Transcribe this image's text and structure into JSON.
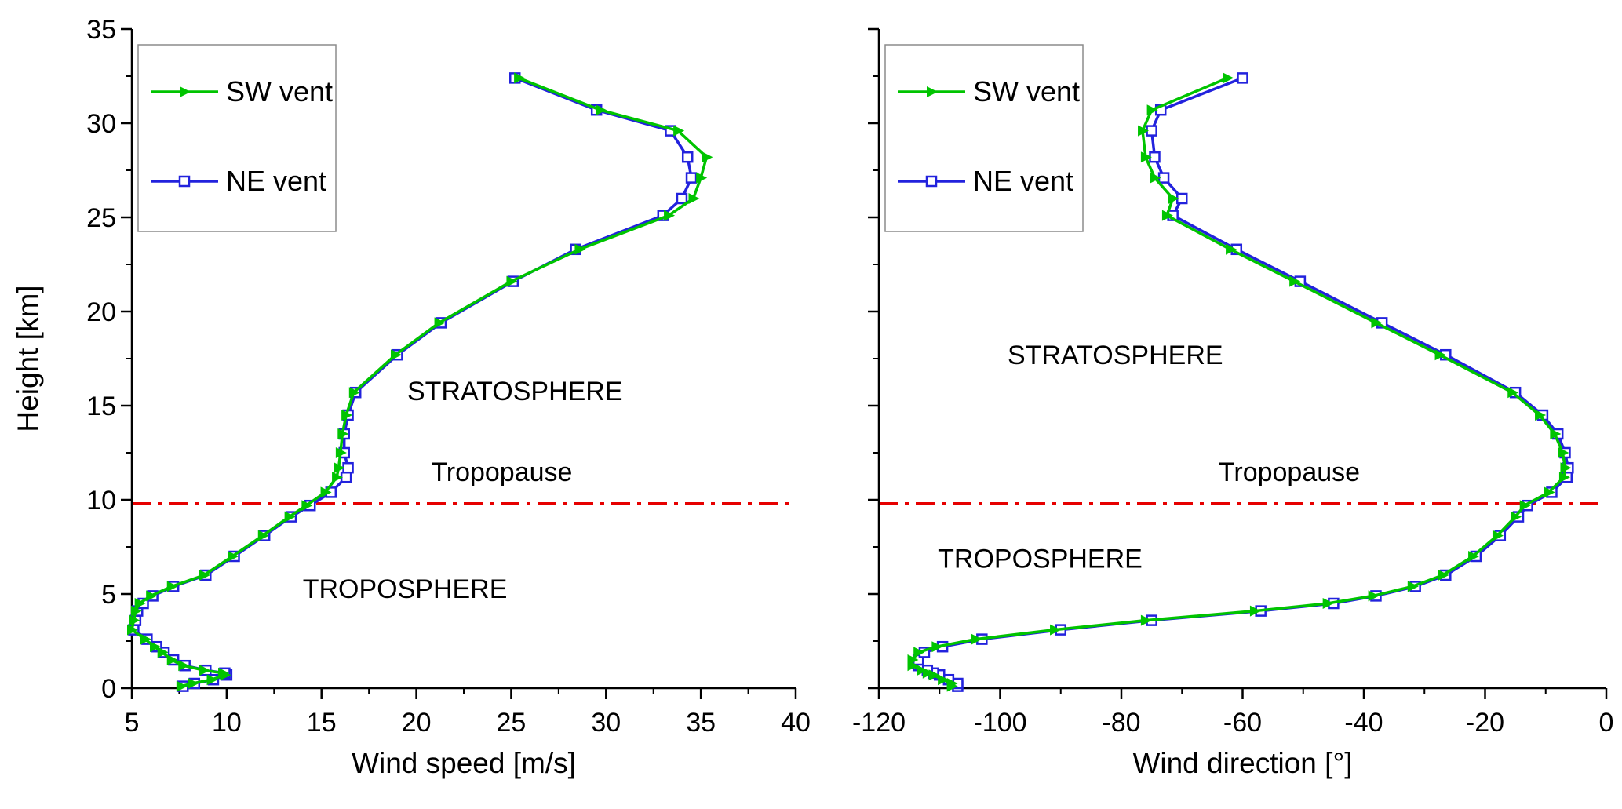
{
  "figure": {
    "background": "#ffffff",
    "legend_border_color": "#8c8c8c"
  },
  "chart_data": [
    {
      "type": "line",
      "title": "",
      "xlabel": "Wind speed [m/s]",
      "ylabel": "Height [km]",
      "xlim": [
        5,
        40
      ],
      "ylim": [
        0,
        35
      ],
      "xticks": [
        5,
        10,
        15,
        20,
        25,
        30,
        35,
        40
      ],
      "yticks": [
        0,
        5,
        10,
        15,
        20,
        25,
        30,
        35
      ],
      "show_y_tick_labels": true,
      "grid": false,
      "legend_position": "top-left",
      "reference_line": {
        "y": 9.8,
        "color": "#e60000",
        "style": "dash-dot"
      },
      "annotations": [
        {
          "text": "STRATOSPHERE",
          "x": 25.2,
          "y": 15.3
        },
        {
          "text": "Tropopause",
          "x": 24.5,
          "y": 11.0
        },
        {
          "text": "TROPOSPHERE",
          "x": 19.4,
          "y": 4.8
        }
      ],
      "heights": [
        0.1,
        0.25,
        0.45,
        0.7,
        0.8,
        0.95,
        1.2,
        1.5,
        1.9,
        2.2,
        2.6,
        3.1,
        3.6,
        4.1,
        4.5,
        4.9,
        5.4,
        6.0,
        7.0,
        8.1,
        9.1,
        9.7,
        10.4,
        11.2,
        11.7,
        12.5,
        13.5,
        14.5,
        15.7,
        17.7,
        19.4,
        21.6,
        23.3,
        25.1,
        26.0,
        27.1,
        28.2,
        29.6,
        30.7,
        32.4
      ],
      "series": [
        {
          "name": "SW vent",
          "color": "#00c400",
          "marker": "triangle-right",
          "values": [
            7.6,
            8.2,
            9.2,
            9.9,
            9.8,
            8.8,
            7.7,
            7.1,
            6.6,
            6.2,
            5.7,
            5.0,
            5.1,
            5.2,
            5.4,
            6.0,
            7.1,
            8.8,
            10.3,
            11.9,
            13.3,
            14.2,
            15.2,
            15.8,
            15.9,
            16.0,
            16.1,
            16.3,
            16.7,
            18.9,
            21.2,
            25.0,
            28.6,
            33.3,
            34.6,
            35.0,
            35.3,
            33.8,
            29.7,
            25.4
          ]
        },
        {
          "name": "NE vent",
          "color": "#2222dd",
          "marker": "square-open",
          "values": [
            7.7,
            8.3,
            9.3,
            10.0,
            9.9,
            8.9,
            7.8,
            7.2,
            6.7,
            6.3,
            5.8,
            5.1,
            5.2,
            5.3,
            5.6,
            6.1,
            7.2,
            8.9,
            10.4,
            12.0,
            13.4,
            14.4,
            15.5,
            16.3,
            16.4,
            16.2,
            16.2,
            16.4,
            16.8,
            19.0,
            21.3,
            25.1,
            28.4,
            33.0,
            34.0,
            34.5,
            34.3,
            33.4,
            29.5,
            25.2
          ]
        }
      ]
    },
    {
      "type": "line",
      "title": "",
      "xlabel": "Wind direction [°]",
      "ylabel": "",
      "xlim": [
        -120,
        0
      ],
      "ylim": [
        0,
        35
      ],
      "xticks": [
        -120,
        -100,
        -80,
        -60,
        -40,
        -20,
        0
      ],
      "yticks": [
        0,
        5,
        10,
        15,
        20,
        25,
        30,
        35
      ],
      "show_y_tick_labels": false,
      "grid": false,
      "legend_position": "top-left",
      "reference_line": {
        "y": 9.8,
        "color": "#e60000",
        "style": "dash-dot"
      },
      "annotations": [
        {
          "text": "STRATOSPHERE",
          "x": -81,
          "y": 17.2
        },
        {
          "text": "Tropopause",
          "x": -52.3,
          "y": 11.0
        },
        {
          "text": "TROPOSPHERE",
          "x": -93.4,
          "y": 6.4
        }
      ],
      "heights": [
        0.1,
        0.25,
        0.45,
        0.7,
        0.8,
        0.95,
        1.2,
        1.5,
        1.9,
        2.2,
        2.6,
        3.1,
        3.6,
        4.1,
        4.5,
        4.9,
        5.4,
        6.0,
        7.0,
        8.1,
        9.1,
        9.7,
        10.4,
        11.2,
        11.7,
        12.5,
        13.5,
        14.5,
        15.7,
        17.7,
        19.4,
        21.6,
        23.3,
        25.1,
        26.0,
        27.1,
        28.2,
        29.6,
        30.7,
        32.4
      ],
      "series": [
        {
          "name": "SW vent",
          "color": "#00c400",
          "marker": "triangle-right",
          "values": [
            -108,
            -108,
            -109.5,
            -111,
            -112,
            -113,
            -114.5,
            -114.5,
            -113.5,
            -110.5,
            -104,
            -91,
            -76,
            -58,
            -46,
            -38.5,
            -32,
            -27,
            -22,
            -18,
            -15,
            -13.5,
            -9.5,
            -7,
            -6.8,
            -7.2,
            -8.5,
            -11,
            -15.5,
            -27.5,
            -38,
            -51.5,
            -62,
            -72.5,
            -71.5,
            -74.5,
            -76,
            -76.5,
            -75,
            -62.5
          ]
        },
        {
          "name": "NE vent",
          "color": "#2222dd",
          "marker": "square-open",
          "values": [
            -107,
            -107,
            -108.5,
            -110,
            -111,
            -112,
            -113.5,
            -113.5,
            -112.5,
            -109.5,
            -103,
            -90,
            -75,
            -57,
            -45,
            -38,
            -31.5,
            -26.5,
            -21.5,
            -17.5,
            -14.5,
            -13,
            -9,
            -6.5,
            -6.3,
            -6.8,
            -8,
            -10.5,
            -15,
            -26.5,
            -37,
            -50.5,
            -61,
            -71.5,
            -70,
            -73,
            -74.5,
            -75,
            -73.5,
            -60
          ]
        }
      ]
    }
  ]
}
